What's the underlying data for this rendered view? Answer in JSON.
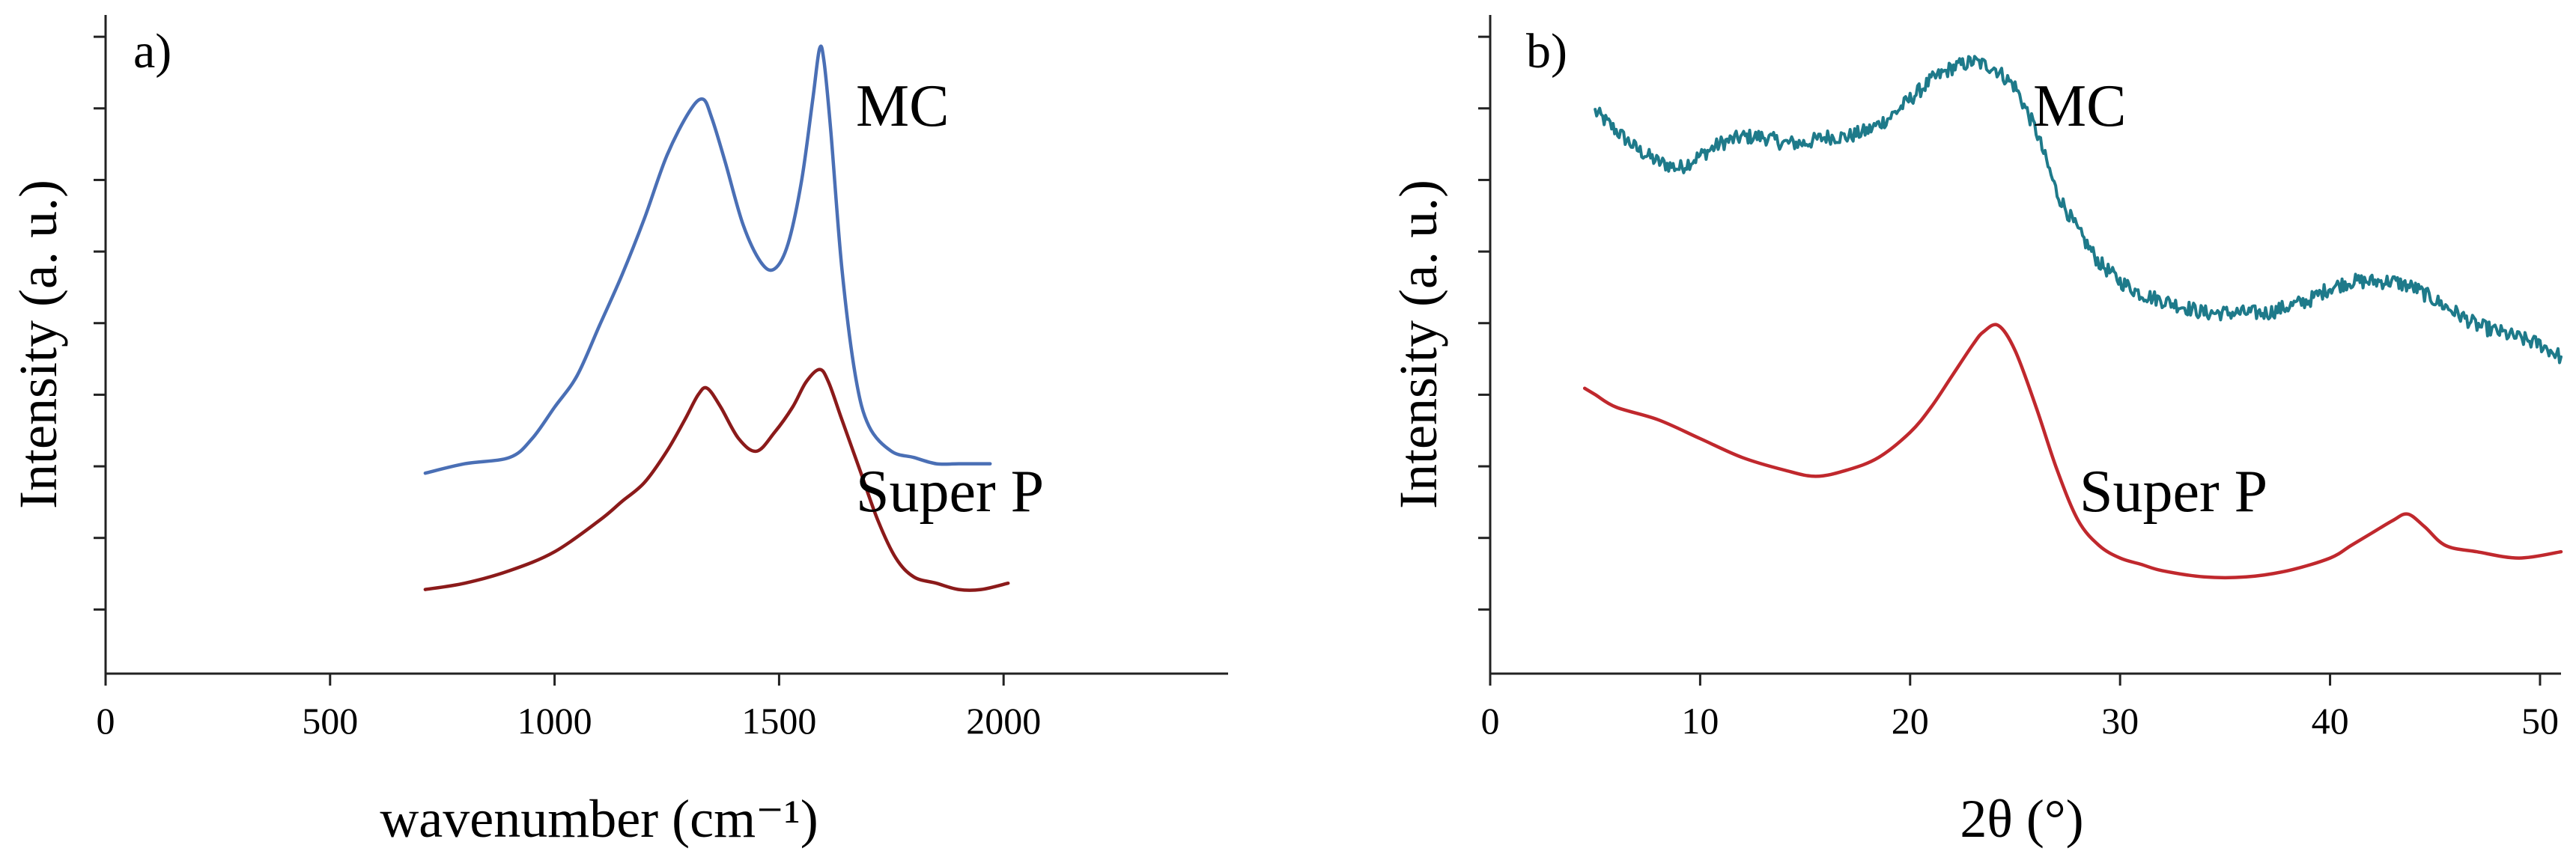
{
  "chart_data": [
    {
      "panel": "a)",
      "type": "line",
      "xlabel": "wavenumber (cm⁻¹)",
      "ylabel": "Intensity (a. u.)",
      "xlim": [
        0,
        2500
      ],
      "ylim": [
        0,
        1
      ],
      "xticks": [
        0,
        500,
        1000,
        1500,
        2000
      ],
      "y_tick_count": 9,
      "y_tick_labels_shown": false,
      "series": [
        {
          "name": "MC",
          "color": "#4a6fb5",
          "x": [
            712,
            800,
            900,
            950,
            1000,
            1050,
            1100,
            1150,
            1200,
            1250,
            1300,
            1330,
            1350,
            1380,
            1420,
            1460,
            1490,
            1520,
            1550,
            1575,
            1590,
            1600,
            1615,
            1640,
            1670,
            1700,
            1750,
            1800,
            1850,
            1900,
            1970
          ],
          "y": [
            0.295,
            0.31,
            0.32,
            0.35,
            0.4,
            0.45,
            0.53,
            0.61,
            0.7,
            0.8,
            0.87,
            0.89,
            0.86,
            0.79,
            0.69,
            0.63,
            0.62,
            0.66,
            0.76,
            0.89,
            0.97,
            0.95,
            0.84,
            0.62,
            0.45,
            0.37,
            0.33,
            0.32,
            0.31,
            0.31,
            0.31
          ]
        },
        {
          "name": "Super P",
          "color": "#8b1a1a",
          "x": [
            712,
            800,
            900,
            1000,
            1100,
            1150,
            1200,
            1250,
            1290,
            1320,
            1340,
            1370,
            1410,
            1450,
            1490,
            1530,
            1560,
            1590,
            1610,
            1640,
            1680,
            1720,
            1760,
            1800,
            1850,
            1900,
            1950,
            2010
          ],
          "y": [
            0.11,
            0.12,
            0.14,
            0.17,
            0.22,
            0.25,
            0.28,
            0.33,
            0.38,
            0.42,
            0.43,
            0.4,
            0.35,
            0.33,
            0.36,
            0.4,
            0.44,
            0.46,
            0.44,
            0.38,
            0.3,
            0.22,
            0.16,
            0.13,
            0.12,
            0.11,
            0.11,
            0.12
          ]
        }
      ]
    },
    {
      "panel": "b)",
      "type": "line",
      "xlabel": "2θ (°)",
      "ylabel": "Intensity (a. u.)",
      "xlim": [
        0,
        51
      ],
      "ylim": [
        0,
        1
      ],
      "xticks": [
        0,
        10,
        20,
        30,
        40,
        50
      ],
      "y_tick_count": 9,
      "y_tick_labels_shown": false,
      "series": [
        {
          "name": "MC",
          "color": "#1e7a8a",
          "noise": 0.012,
          "x": [
            5,
            6,
            7,
            8,
            9,
            10,
            11,
            12,
            13,
            14,
            15,
            16,
            17,
            18,
            19,
            20,
            21,
            22,
            23,
            24,
            25,
            26,
            27,
            28,
            29,
            30,
            31,
            32,
            33,
            34,
            35,
            36,
            37,
            38,
            39,
            40,
            41,
            42,
            43,
            44,
            45,
            46,
            47,
            48,
            49,
            50,
            51
          ],
          "y": [
            0.87,
            0.84,
            0.81,
            0.79,
            0.78,
            0.8,
            0.82,
            0.83,
            0.83,
            0.82,
            0.82,
            0.83,
            0.83,
            0.84,
            0.86,
            0.89,
            0.92,
            0.94,
            0.95,
            0.94,
            0.91,
            0.84,
            0.74,
            0.68,
            0.63,
            0.6,
            0.58,
            0.57,
            0.56,
            0.55,
            0.55,
            0.55,
            0.55,
            0.56,
            0.57,
            0.59,
            0.6,
            0.6,
            0.6,
            0.59,
            0.57,
            0.55,
            0.53,
            0.52,
            0.51,
            0.5,
            0.48
          ]
        },
        {
          "name": "Super P",
          "color": "#c0282d",
          "x": [
            4.5,
            5,
            6,
            8,
            10,
            12,
            14,
            15.5,
            17,
            18.5,
            20,
            21,
            22,
            23,
            23.5,
            24.2,
            25,
            26,
            27,
            28,
            29,
            30,
            31,
            32,
            34,
            36,
            38,
            40,
            41,
            42,
            43,
            43.7,
            44.5,
            45.5,
            47,
            49,
            51
          ],
          "y": [
            0.43,
            0.42,
            0.4,
            0.38,
            0.35,
            0.32,
            0.3,
            0.29,
            0.3,
            0.32,
            0.36,
            0.4,
            0.45,
            0.5,
            0.52,
            0.53,
            0.49,
            0.4,
            0.3,
            0.22,
            0.18,
            0.16,
            0.15,
            0.14,
            0.13,
            0.13,
            0.14,
            0.16,
            0.18,
            0.2,
            0.22,
            0.23,
            0.21,
            0.18,
            0.17,
            0.16,
            0.17
          ]
        }
      ]
    }
  ]
}
